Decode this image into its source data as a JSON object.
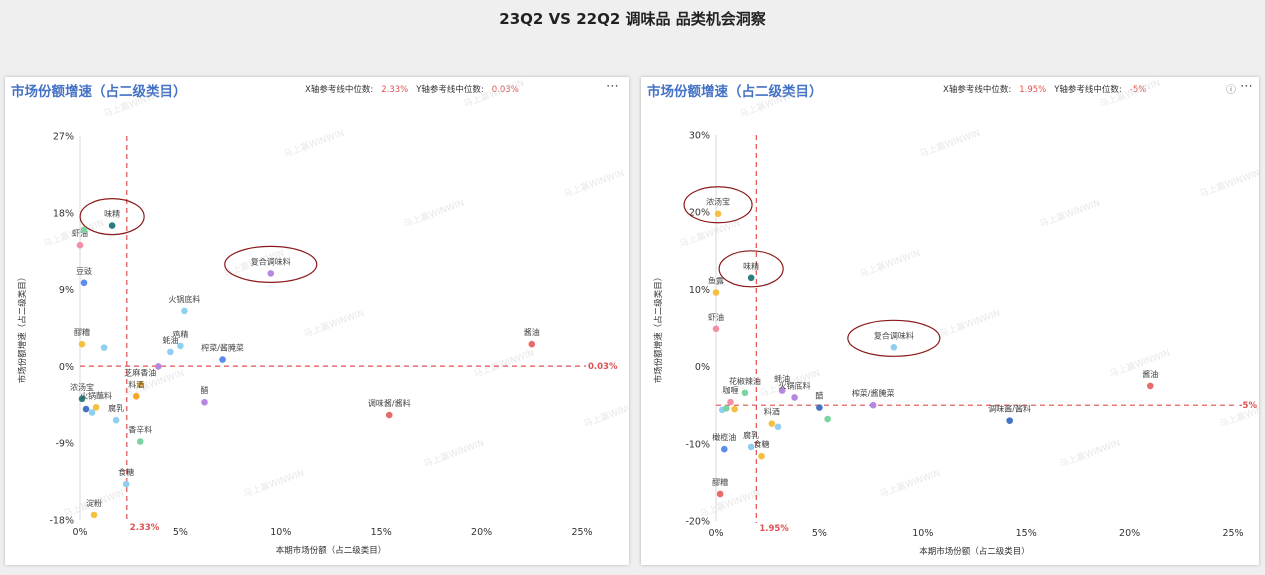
{
  "page_title": "23Q2 VS 22Q2 调味品 品类机会洞察",
  "watermark": "马上赢WINWIN",
  "icons": {
    "more": "more-icon",
    "info": "info-icon"
  },
  "colors": {
    "title_blue": "#4472c4",
    "ref_line": "#e05050",
    "ellipse": "#8b1a1a"
  },
  "chart_data": [
    {
      "type": "scatter",
      "title": "市场份额增速（占二级类目）",
      "x_ref_label": "X轴参考线中位数:",
      "x_ref_value": "2.33%",
      "y_ref_label": "Y轴参考线中位数:",
      "y_ref_value": "0.03%",
      "x_ref": 2.33,
      "y_ref": 0.03,
      "x_ref_tag": "2.33%",
      "y_ref_tag": "0.03%",
      "xlabel": "本期市场份额（占二级类目）",
      "ylabel": "市场份额增速（占二级类目）",
      "xlim": [
        0,
        25
      ],
      "ylim": [
        -18,
        27
      ],
      "x_ticks": [
        0,
        5,
        10,
        15,
        20,
        25
      ],
      "x_tick_labels": [
        "0%",
        "5%",
        "10%",
        "15%",
        "20%",
        "25%"
      ],
      "y_ticks": [
        -18,
        -9,
        0,
        9,
        18,
        27
      ],
      "y_tick_labels": [
        "-18%",
        "-9%",
        "0%",
        "9%",
        "18%",
        "27%"
      ],
      "points": [
        {
          "label": "味精",
          "x": 1.6,
          "y": 16.5,
          "color": "#2e7d7d",
          "circled": true
        },
        {
          "label": "虾油",
          "x": 0.0,
          "y": 14.2,
          "color": "#f48fa8"
        },
        {
          "label": "",
          "x": 0.2,
          "y": 16.0,
          "color": "#7ad3a0"
        },
        {
          "label": "豆豉",
          "x": 0.2,
          "y": 9.8,
          "color": "#5b8def"
        },
        {
          "label": "复合调味料",
          "x": 9.5,
          "y": 10.9,
          "color": "#b487e0",
          "circled": true
        },
        {
          "label": "火锅底料",
          "x": 5.2,
          "y": 6.5,
          "color": "#8fd0f0"
        },
        {
          "label": "鸡精",
          "x": 5.0,
          "y": 2.4,
          "color": "#8fd0f0"
        },
        {
          "label": "醪糟",
          "x": 0.1,
          "y": 2.6,
          "color": "#f5c042"
        },
        {
          "label": "",
          "x": 1.2,
          "y": 2.2,
          "color": "#8fd0f0"
        },
        {
          "label": "蚝油",
          "x": 4.5,
          "y": 1.7,
          "color": "#8fd0f0"
        },
        {
          "label": "榨菜/酱腌菜",
          "x": 7.1,
          "y": 0.8,
          "color": "#5b8def"
        },
        {
          "label": "",
          "x": 3.9,
          "y": 0.0,
          "color": "#b487e0"
        },
        {
          "label": "酱油",
          "x": 22.5,
          "y": 2.6,
          "color": "#e86a6a"
        },
        {
          "label": "芝麻香油",
          "x": 3.0,
          "y": -2.1,
          "color": "#f5c042"
        },
        {
          "label": "料酒",
          "x": 2.8,
          "y": -3.5,
          "color": "#f5a623"
        },
        {
          "label": "浓汤宝",
          "x": 0.1,
          "y": -3.8,
          "color": "#2e7d7d"
        },
        {
          "label": "",
          "x": 0.3,
          "y": -5.0,
          "color": "#4472c4"
        },
        {
          "label": "",
          "x": 0.6,
          "y": -5.4,
          "color": "#8fd0f0"
        },
        {
          "label": "火锅蘸料",
          "x": 0.8,
          "y": -4.8,
          "color": "#f5c042"
        },
        {
          "label": "醋",
          "x": 6.2,
          "y": -4.2,
          "color": "#b487e0"
        },
        {
          "label": "腐乳",
          "x": 1.8,
          "y": -6.3,
          "color": "#8fd0f0"
        },
        {
          "label": "调味酱/酱料",
          "x": 15.4,
          "y": -5.7,
          "color": "#e86a6a"
        },
        {
          "label": "香辛料",
          "x": 3.0,
          "y": -8.8,
          "color": "#7ad3a0"
        },
        {
          "label": "食糖",
          "x": 2.3,
          "y": -13.8,
          "color": "#8fd0f0"
        },
        {
          "label": "淀粉",
          "x": 0.7,
          "y": -17.4,
          "color": "#f5c042"
        }
      ]
    },
    {
      "type": "scatter",
      "title": "市场份额增速（占二级类目）",
      "x_ref_label": "X轴参考线中位数:",
      "x_ref_value": "1.95%",
      "y_ref_label": "Y轴参考线中位数:",
      "y_ref_value": "-5%",
      "x_ref": 1.95,
      "y_ref": -5,
      "x_ref_tag": "1.95%",
      "y_ref_tag": "-5%",
      "xlabel": "本期市场份额（占二级类目）",
      "ylabel": "市场份额增速（占二级类目）",
      "xlim": [
        0,
        25
      ],
      "ylim": [
        -20,
        30
      ],
      "x_ticks": [
        0,
        5,
        10,
        15,
        20,
        25
      ],
      "x_tick_labels": [
        "0%",
        "5%",
        "10%",
        "15%",
        "20%",
        "25%"
      ],
      "y_ticks": [
        -20,
        -10,
        0,
        10,
        20,
        30
      ],
      "y_tick_labels": [
        "-20%",
        "-10%",
        "0%",
        "10%",
        "20%",
        "30%"
      ],
      "points": [
        {
          "label": "浓汤宝",
          "x": 0.1,
          "y": 19.8,
          "color": "#f5c042",
          "circled": true
        },
        {
          "label": "味精",
          "x": 1.7,
          "y": 11.5,
          "color": "#2e7d7d",
          "circled": true
        },
        {
          "label": "鱼露",
          "x": 0.0,
          "y": 9.6,
          "color": "#f5c042"
        },
        {
          "label": "虾油",
          "x": 0.0,
          "y": 4.9,
          "color": "#f48fa8"
        },
        {
          "label": "复合调味料",
          "x": 8.6,
          "y": 2.5,
          "color": "#8fd0f0",
          "circled": true
        },
        {
          "label": "酱油",
          "x": 21.0,
          "y": -2.5,
          "color": "#e86a6a"
        },
        {
          "label": "花椒辣油",
          "x": 1.4,
          "y": -3.4,
          "color": "#7ad3a0"
        },
        {
          "label": "蚝油",
          "x": 3.2,
          "y": -3.1,
          "color": "#b487e0"
        },
        {
          "label": "火锅底料",
          "x": 3.8,
          "y": -4.0,
          "color": "#b487e0"
        },
        {
          "label": "醋",
          "x": 5.0,
          "y": -5.3,
          "color": "#4472c4"
        },
        {
          "label": "榨菜/酱腌菜",
          "x": 7.6,
          "y": -5.0,
          "color": "#b487e0"
        },
        {
          "label": "咖喱",
          "x": 0.7,
          "y": -4.6,
          "color": "#f48fa8"
        },
        {
          "label": "",
          "x": 0.3,
          "y": -5.6,
          "color": "#8fd0f0"
        },
        {
          "label": "",
          "x": 0.5,
          "y": -5.4,
          "color": "#7ad3a0"
        },
        {
          "label": "",
          "x": 0.9,
          "y": -5.5,
          "color": "#f5c042"
        },
        {
          "label": "料酒",
          "x": 2.7,
          "y": -7.4,
          "color": "#f5c042"
        },
        {
          "label": "",
          "x": 3.0,
          "y": -7.8,
          "color": "#8fd0f0"
        },
        {
          "label": "",
          "x": 5.4,
          "y": -6.8,
          "color": "#7ad3a0"
        },
        {
          "label": "调味酱/酱料",
          "x": 14.2,
          "y": -7.0,
          "color": "#4472c4"
        },
        {
          "label": "橄榄油",
          "x": 0.4,
          "y": -10.7,
          "color": "#5b8def"
        },
        {
          "label": "腐乳",
          "x": 1.7,
          "y": -10.4,
          "color": "#8fd0f0"
        },
        {
          "label": "食糖",
          "x": 2.2,
          "y": -11.6,
          "color": "#f5c042"
        },
        {
          "label": "醪糟",
          "x": 0.2,
          "y": -16.5,
          "color": "#e86a6a"
        }
      ]
    }
  ]
}
